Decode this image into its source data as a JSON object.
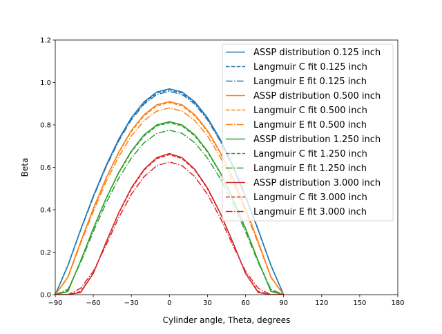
{
  "chart_data": {
    "type": "line",
    "xlabel": "Cylinder angle, Theta, degrees",
    "ylabel": "Beta",
    "xlim": [
      -90,
      180
    ],
    "ylim": [
      0,
      1.2
    ],
    "xticks": [
      -90,
      -60,
      -30,
      0,
      30,
      60,
      90,
      120,
      150,
      180
    ],
    "xtick_labels": [
      "−90",
      "−60",
      "−30",
      "0",
      "30",
      "60",
      "90",
      "120",
      "150",
      "180"
    ],
    "yticks": [
      0,
      0.2,
      0.4,
      0.6,
      0.8,
      1.0,
      1.2
    ],
    "ytick_labels": [
      "0.0",
      "0.2",
      "0.4",
      "0.6",
      "0.8",
      "1.0",
      "1.2"
    ],
    "grid": false,
    "legend_position": "top-right",
    "x": [
      -90,
      -80,
      -70,
      -60,
      -50,
      -40,
      -30,
      -20,
      -10,
      0,
      10,
      20,
      30,
      40,
      50,
      60,
      70,
      80,
      90
    ],
    "series": [
      {
        "name": "ASSP distribution 0.125 inch",
        "color": "#1f77b4",
        "style": "solid",
        "y": [
          0,
          0.139,
          0.306,
          0.465,
          0.608,
          0.733,
          0.834,
          0.909,
          0.955,
          0.97,
          0.955,
          0.909,
          0.834,
          0.733,
          0.608,
          0.465,
          0.306,
          0.139,
          0
        ]
      },
      {
        "name": "Langmuir C fit 0.125 inch",
        "color": "#1f77b4",
        "style": "dashed",
        "y": [
          0,
          0.138,
          0.305,
          0.462,
          0.605,
          0.73,
          0.83,
          0.904,
          0.95,
          0.965,
          0.95,
          0.904,
          0.83,
          0.73,
          0.605,
          0.462,
          0.305,
          0.138,
          0
        ]
      },
      {
        "name": "Langmuir E fit 0.125 inch",
        "color": "#1f77b4",
        "style": "dashdot",
        "y": [
          0,
          0.137,
          0.303,
          0.459,
          0.601,
          0.724,
          0.824,
          0.898,
          0.943,
          0.958,
          0.943,
          0.898,
          0.824,
          0.724,
          0.601,
          0.459,
          0.303,
          0.137,
          0
        ]
      },
      {
        "name": "ASSP distribution 0.500 inch",
        "color": "#ff7f0e",
        "style": "solid",
        "y": [
          0,
          0.084,
          0.249,
          0.406,
          0.549,
          0.672,
          0.774,
          0.848,
          0.895,
          0.91,
          0.895,
          0.848,
          0.774,
          0.672,
          0.549,
          0.406,
          0.249,
          0.084,
          0
        ]
      },
      {
        "name": "Langmuir C fit 0.500 inch",
        "color": "#ff7f0e",
        "style": "dashed",
        "y": [
          0,
          0.083,
          0.248,
          0.404,
          0.546,
          0.669,
          0.769,
          0.843,
          0.89,
          0.905,
          0.89,
          0.843,
          0.769,
          0.669,
          0.546,
          0.404,
          0.248,
          0.083,
          0
        ]
      },
      {
        "name": "Langmuir E fit 0.500 inch",
        "color": "#ff7f0e",
        "style": "dashdot",
        "y": [
          0,
          0.081,
          0.241,
          0.392,
          0.531,
          0.65,
          0.748,
          0.82,
          0.865,
          0.88,
          0.865,
          0.82,
          0.748,
          0.65,
          0.531,
          0.392,
          0.241,
          0.081,
          0
        ]
      },
      {
        "name": "ASSP distribution 1.250 inch",
        "color": "#2ca02c",
        "style": "solid",
        "y": [
          0,
          0.015,
          0.159,
          0.312,
          0.453,
          0.576,
          0.677,
          0.753,
          0.8,
          0.815,
          0.8,
          0.753,
          0.677,
          0.576,
          0.453,
          0.312,
          0.159,
          0.015,
          0
        ]
      },
      {
        "name": "Langmuir C fit 1.250 inch",
        "color": "#2ca02c",
        "style": "dashed",
        "y": [
          0,
          0.02,
          0.158,
          0.31,
          0.45,
          0.573,
          0.673,
          0.748,
          0.795,
          0.81,
          0.795,
          0.748,
          0.673,
          0.573,
          0.45,
          0.31,
          0.158,
          0.02,
          0
        ]
      },
      {
        "name": "Langmuir E fit 1.250 inch",
        "color": "#2ca02c",
        "style": "dashdot",
        "y": [
          0,
          0.025,
          0.151,
          0.297,
          0.431,
          0.548,
          0.644,
          0.716,
          0.76,
          0.775,
          0.76,
          0.716,
          0.644,
          0.548,
          0.431,
          0.297,
          0.151,
          0.025,
          0
        ]
      },
      {
        "name": "ASSP distribution 3.000 inch",
        "color": "#d62728",
        "style": "solid",
        "y": [
          0,
          0,
          0.01,
          0.1,
          0.247,
          0.386,
          0.503,
          0.591,
          0.646,
          0.665,
          0.646,
          0.591,
          0.503,
          0.386,
          0.247,
          0.1,
          0.01,
          0,
          0
        ]
      },
      {
        "name": "Langmuir C fit 3.000 inch",
        "color": "#d62728",
        "style": "dashed",
        "y": [
          0,
          0,
          0.015,
          0.1,
          0.245,
          0.383,
          0.499,
          0.587,
          0.641,
          0.66,
          0.641,
          0.587,
          0.499,
          0.383,
          0.245,
          0.1,
          0.015,
          0,
          0
        ]
      },
      {
        "name": "Langmuir E fit 3.000 inch",
        "color": "#d62728",
        "style": "dashdot",
        "y": [
          0,
          0,
          0.03,
          0.11,
          0.233,
          0.363,
          0.473,
          0.556,
          0.608,
          0.625,
          0.608,
          0.556,
          0.473,
          0.363,
          0.233,
          0.11,
          0.03,
          0,
          0
        ]
      }
    ]
  }
}
